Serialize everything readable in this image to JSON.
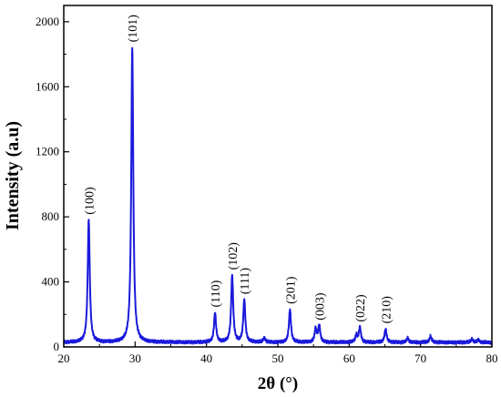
{
  "chart_data": {
    "type": "line",
    "title": "",
    "xlabel": "2θ (°)",
    "ylabel": "Intensity (a.u)",
    "xlim": [
      20,
      80
    ],
    "ylim": [
      0,
      2100
    ],
    "grid": false,
    "series_color": "#1a1adb",
    "x_ticks": [
      20,
      30,
      40,
      50,
      60,
      70,
      80
    ],
    "x_tick_labels": [
      "20",
      "30",
      "40",
      "50",
      "60",
      "70",
      "80"
    ],
    "y_ticks": [
      0,
      400,
      800,
      1200,
      1600,
      2000
    ],
    "y_tick_labels": [
      "0",
      "400",
      "800",
      "1200",
      "1600",
      "2000"
    ],
    "baseline": 28,
    "peaks": [
      {
        "label": "(100)",
        "x": 23.5,
        "y": 780
      },
      {
        "label": "(101)",
        "x": 29.6,
        "y": 1840
      },
      {
        "label": "(110)",
        "x": 41.2,
        "y": 210
      },
      {
        "label": "(102)",
        "x": 43.6,
        "y": 440
      },
      {
        "label": "(111)",
        "x": 45.3,
        "y": 290
      },
      {
        "label": "(201)",
        "x": 51.7,
        "y": 230
      },
      {
        "label": "(003)",
        "x": 55.8,
        "y": 130
      },
      {
        "label": "(022)",
        "x": 61.5,
        "y": 120
      },
      {
        "label": "(210)",
        "x": 65.1,
        "y": 110
      }
    ],
    "minor_peaks": [
      {
        "x": 48.1,
        "y": 55
      },
      {
        "x": 55.3,
        "y": 110
      },
      {
        "x": 61.0,
        "y": 70
      },
      {
        "x": 68.2,
        "y": 55
      },
      {
        "x": 71.4,
        "y": 65
      },
      {
        "x": 77.2,
        "y": 48
      },
      {
        "x": 78.1,
        "y": 42
      }
    ]
  }
}
